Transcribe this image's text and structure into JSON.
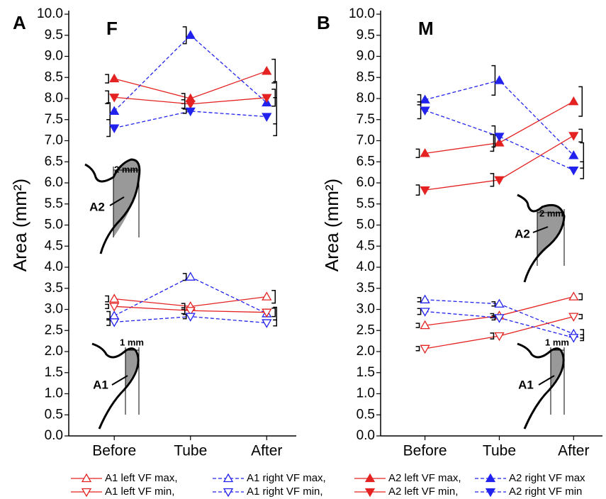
{
  "chart_data": [
    {
      "type": "line",
      "panel_label": "A",
      "title": "F",
      "y_label": "Area (mm²)",
      "categories": [
        "Before",
        "Tube",
        "After"
      ],
      "ylim": [
        0,
        10
      ],
      "yticks": [
        {
          "value": 0,
          "label": "0.0"
        },
        0.5,
        {
          "value": 1,
          "label": "1.0"
        },
        1.5,
        {
          "value": 2,
          "label": "2.0"
        },
        2.5,
        {
          "value": 3,
          "label": "3.0"
        },
        3.5,
        {
          "value": 4,
          "label": "4.0"
        },
        4.5,
        {
          "value": 5,
          "label": "5.0"
        },
        5.5,
        {
          "value": 6,
          "label": "6.0"
        },
        6.5,
        {
          "value": 7,
          "label": "7.0"
        },
        7.5,
        {
          "value": 8,
          "label": "8.0"
        },
        8.5,
        {
          "value": 9,
          "label": "9.0"
        },
        9.5,
        {
          "value": 10,
          "label": "10.0"
        }
      ],
      "annotations": [
        "2 mm",
        "A2",
        "1 mm",
        "A1"
      ],
      "series": [
        {
          "name": "A1 left VF max,",
          "color": "#e52222",
          "marker": "up",
          "filled": false,
          "dashed": false,
          "values": [
            3.25,
            3.07,
            3.3
          ],
          "errors": [
            0.07,
            0.07,
            0.15
          ]
        },
        {
          "name": "A1 right VF max,",
          "color": "#2222ee",
          "marker": "up",
          "filled": false,
          "dashed": true,
          "values": [
            2.85,
            3.77,
            2.9
          ],
          "errors": [
            0.1,
            0.08,
            0.15
          ]
        },
        {
          "name": "A2 left VF max,",
          "color": "#e52222",
          "marker": "up",
          "filled": true,
          "dashed": false,
          "values": [
            8.47,
            8.0,
            8.65
          ],
          "errors": [
            0.1,
            0.12,
            0.28
          ]
        },
        {
          "name": "A2 right VF max",
          "color": "#2222ee",
          "marker": "up",
          "filled": true,
          "dashed": true,
          "values": [
            7.7,
            9.5,
            7.9
          ],
          "errors": [
            0.2,
            0.2,
            0.5
          ]
        },
        {
          "name": "A1 left VF min,",
          "color": "#e52222",
          "marker": "down",
          "filled": false,
          "dashed": false,
          "values": [
            3.07,
            2.97,
            2.93
          ],
          "errors": [
            0.05,
            0.07,
            0.1
          ]
        },
        {
          "name": "A1 right VF min,",
          "color": "#2222ee",
          "marker": "down",
          "filled": false,
          "dashed": true,
          "values": [
            2.7,
            2.83,
            2.68
          ],
          "errors": [
            0.08,
            0.05,
            0.07
          ]
        },
        {
          "name": "A2 left VF min,",
          "color": "#e52222",
          "marker": "down",
          "filled": true,
          "dashed": false,
          "values": [
            8.03,
            7.87,
            8.02
          ],
          "errors": [
            0.15,
            0.1,
            0.2
          ]
        },
        {
          "name": "A2 right VF min",
          "color": "#2222ee",
          "marker": "down",
          "filled": true,
          "dashed": true,
          "values": [
            7.3,
            7.7,
            7.57
          ],
          "errors": [
            0.2,
            0.05,
            0.45
          ]
        }
      ]
    },
    {
      "type": "line",
      "panel_label": "B",
      "title": "M",
      "y_label": "Area (mm²)",
      "categories": [
        "Before",
        "Tube",
        "After"
      ],
      "ylim": [
        0,
        10
      ],
      "yticks": [
        {
          "value": 0,
          "label": "0.0"
        },
        0.5,
        {
          "value": 1,
          "label": "1.0"
        },
        1.5,
        {
          "value": 2,
          "label": "2.0"
        },
        2.5,
        {
          "value": 3,
          "label": "3.0"
        },
        3.5,
        {
          "value": 4,
          "label": "4.0"
        },
        4.5,
        {
          "value": 5,
          "label": "5.0"
        },
        5.5,
        {
          "value": 6,
          "label": "6.0"
        },
        6.5,
        {
          "value": 7,
          "label": "7.0"
        },
        7.5,
        {
          "value": 8,
          "label": "8.0"
        },
        8.5,
        {
          "value": 9,
          "label": "9.0"
        },
        9.5,
        {
          "value": 10,
          "label": "10.0"
        }
      ],
      "annotations": [
        "2 mm",
        "A2",
        "1 mm",
        "A1"
      ],
      "series": [
        {
          "color": "#e52222",
          "marker": "up",
          "filled": false,
          "dashed": false,
          "values": [
            2.62,
            2.85,
            3.3
          ],
          "errors": [
            0.05,
            0.05,
            0.07
          ]
        },
        {
          "color": "#2222ee",
          "marker": "up",
          "filled": false,
          "dashed": true,
          "values": [
            3.23,
            3.13,
            2.42
          ],
          "errors": [
            0.05,
            0.05,
            0.1
          ]
        },
        {
          "color": "#e52222",
          "marker": "up",
          "filled": true,
          "dashed": false,
          "values": [
            6.7,
            6.95,
            7.93
          ],
          "errors": [
            0.1,
            0.2,
            0.35
          ]
        },
        {
          "color": "#2222ee",
          "marker": "up",
          "filled": true,
          "dashed": true,
          "values": [
            7.97,
            8.43,
            6.65
          ],
          "errors": [
            0.12,
            0.35,
            0.3
          ]
        },
        {
          "color": "#e52222",
          "marker": "down",
          "filled": false,
          "dashed": false,
          "values": [
            2.07,
            2.37,
            2.83
          ],
          "errors": [
            0.05,
            0.07,
            0.05
          ]
        },
        {
          "color": "#2222ee",
          "marker": "down",
          "filled": false,
          "dashed": true,
          "values": [
            2.95,
            2.8,
            2.33
          ],
          "errors": [
            0.07,
            0.05,
            0.07
          ]
        },
        {
          "color": "#e52222",
          "marker": "down",
          "filled": true,
          "dashed": false,
          "values": [
            5.83,
            6.07,
            7.12
          ],
          "errors": [
            0.12,
            0.15,
            0.15
          ]
        },
        {
          "color": "#2222ee",
          "marker": "down",
          "filled": true,
          "dashed": true,
          "values": [
            7.72,
            7.1,
            6.3
          ],
          "errors": [
            0.2,
            0.25,
            0.2
          ]
        }
      ]
    }
  ]
}
